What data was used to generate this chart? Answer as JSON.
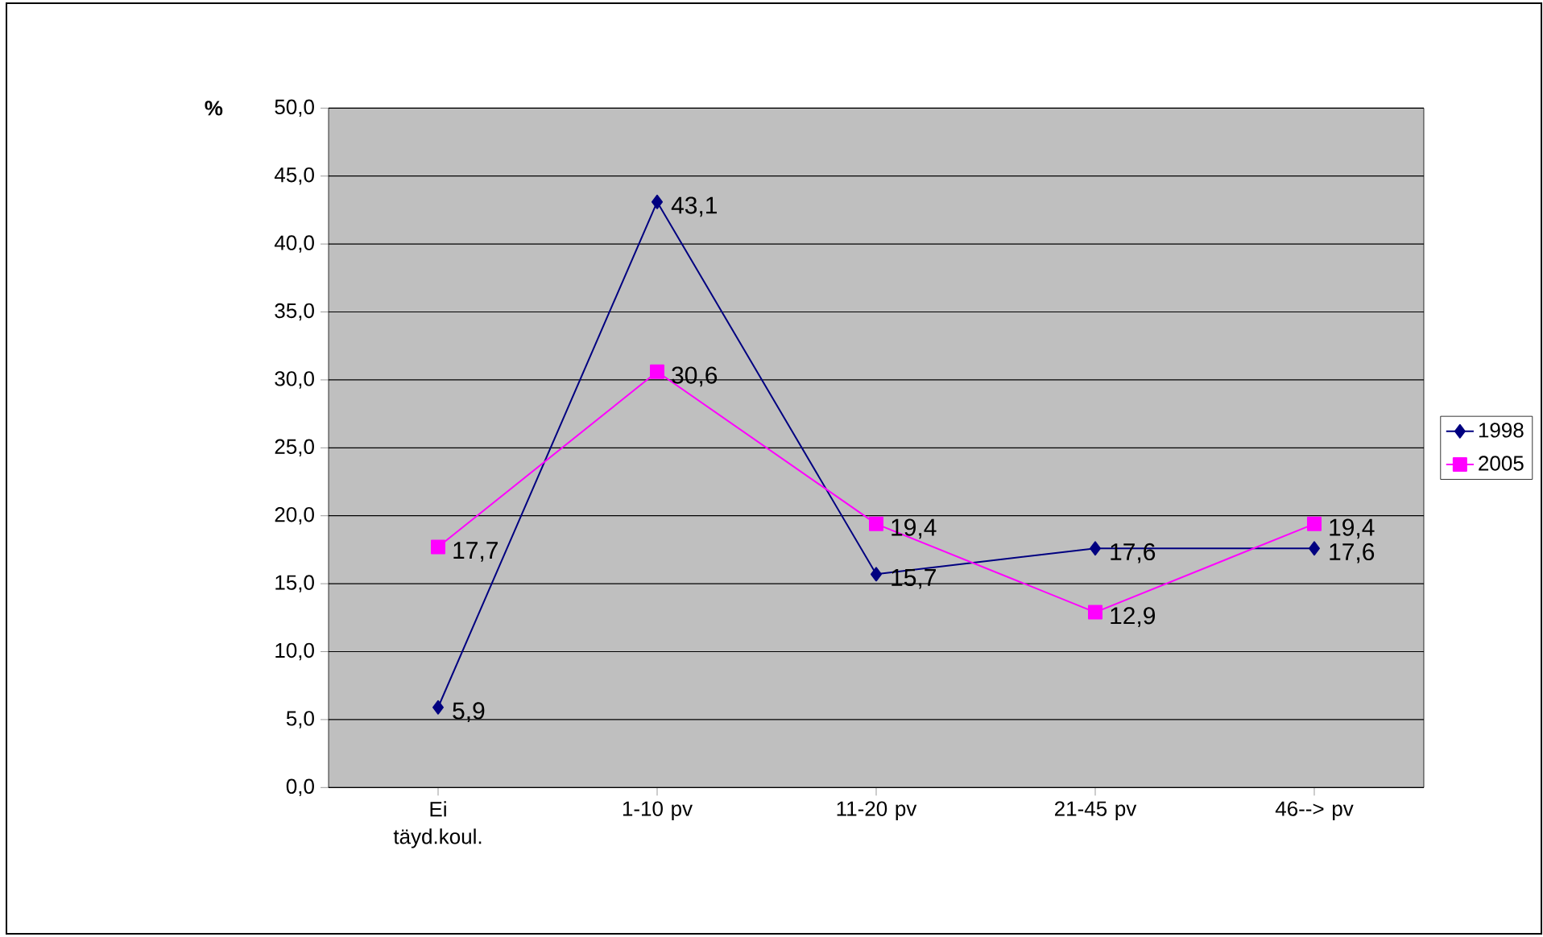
{
  "chart_data": {
    "type": "line",
    "ylabel": "%",
    "categories": [
      "Ei täyd.koul.",
      "1-10 pv",
      "11-20 pv",
      "21-45 pv",
      "46--> pv"
    ],
    "series": [
      {
        "name": "1998",
        "color": "#000080",
        "marker": "diamond",
        "values": [
          5.9,
          43.1,
          15.7,
          17.6,
          17.6
        ],
        "value_labels": [
          "5,9",
          "43,1",
          "15,7",
          "17,6",
          "17,6"
        ]
      },
      {
        "name": "2005",
        "color": "#ff00ff",
        "marker": "square",
        "values": [
          17.7,
          30.6,
          19.4,
          12.9,
          19.4
        ],
        "value_labels": [
          "17,7",
          "30,6",
          "19,4",
          "12,9",
          "19,4"
        ]
      }
    ],
    "ylim": [
      0,
      50
    ],
    "yticks": [
      {
        "value": 0,
        "label": "0,0"
      },
      {
        "value": 5,
        "label": "5,0"
      },
      {
        "value": 10,
        "label": "10,0"
      },
      {
        "value": 15,
        "label": "15,0"
      },
      {
        "value": 20,
        "label": "20,0"
      },
      {
        "value": 25,
        "label": "25,0"
      },
      {
        "value": 30,
        "label": "30,0"
      },
      {
        "value": 35,
        "label": "35,0"
      },
      {
        "value": 40,
        "label": "40,0"
      },
      {
        "value": 45,
        "label": "45,0"
      },
      {
        "value": 50,
        "label": "50,0"
      }
    ],
    "grid": "y",
    "legend": "right"
  }
}
